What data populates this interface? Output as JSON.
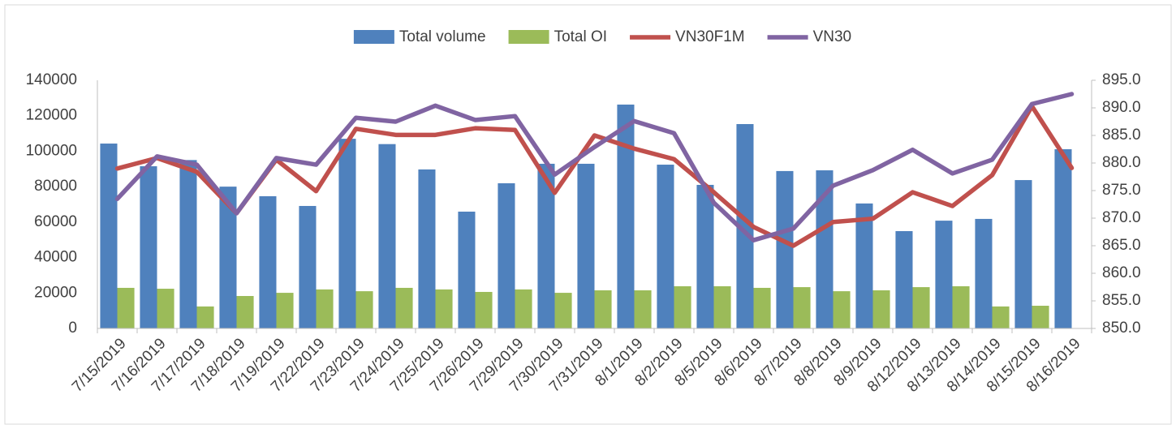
{
  "chart_data": {
    "type": "bar-line",
    "categories": [
      "7/15/2019",
      "7/16/2019",
      "7/17/2019",
      "7/18/2019",
      "7/19/2019",
      "7/22/2019",
      "7/23/2019",
      "7/24/2019",
      "7/25/2019",
      "7/26/2019",
      "7/29/2019",
      "7/30/2019",
      "7/31/2019",
      "8/1/2019",
      "8/2/2019",
      "8/5/2019",
      "8/6/2019",
      "8/7/2019",
      "8/8/2019",
      "8/9/2019",
      "8/12/2019",
      "8/13/2019",
      "8/14/2019",
      "8/15/2019",
      "8/16/2019"
    ],
    "series": [
      {
        "name": "Total volume",
        "type": "bar",
        "color": "#4f81bd",
        "values": [
          104300,
          91500,
          95000,
          80000,
          74600,
          69100,
          107000,
          104000,
          89700,
          65900,
          81900,
          92900,
          92900,
          126300,
          92400,
          81000,
          115300,
          88800,
          89200,
          70500,
          54900,
          60800,
          61800,
          83700,
          101100
        ]
      },
      {
        "name": "Total OI",
        "type": "bar",
        "color": "#9bbb59",
        "values": [
          22900,
          22400,
          12400,
          18300,
          20100,
          22000,
          21000,
          22900,
          22000,
          20600,
          22000,
          20100,
          21500,
          21500,
          23800,
          23800,
          22900,
          23300,
          21000,
          21500,
          23300,
          23800,
          12400,
          12800,
          null
        ]
      },
      {
        "name": "VN30F1M",
        "type": "line",
        "axis": "y2",
        "color": "#c0504d",
        "values": [
          879.0,
          880.9,
          878.4,
          870.9,
          880.6,
          874.9,
          886.2,
          885.1,
          885.1,
          886.3,
          886.0,
          874.6,
          885.0,
          882.6,
          880.7,
          874.7,
          868.4,
          865.0,
          869.3,
          869.9,
          874.7,
          872.2,
          877.8,
          890.3,
          879.1
        ]
      },
      {
        "name": "VN30",
        "type": "line",
        "axis": "y2",
        "color": "#8064a2",
        "values": [
          873.5,
          881.2,
          879.7,
          870.9,
          880.9,
          879.7,
          888.2,
          887.5,
          890.4,
          887.8,
          888.5,
          877.9,
          882.9,
          887.6,
          885.4,
          872.8,
          866.0,
          868.1,
          875.9,
          878.7,
          882.4,
          878.1,
          880.6,
          890.7,
          892.5
        ]
      }
    ],
    "ylim": [
      0,
      140000
    ],
    "yticks": [
      0,
      20000,
      40000,
      60000,
      80000,
      100000,
      120000,
      140000
    ],
    "y2lim": [
      850,
      895
    ],
    "y2ticks": [
      {
        "value": 850,
        "label": "850.0"
      },
      {
        "value": 855,
        "label": "855.0"
      },
      {
        "value": 860,
        "label": "860.0"
      },
      {
        "value": 865,
        "label": "865.0"
      },
      {
        "value": 870,
        "label": "870.0"
      },
      {
        "value": 875,
        "label": "875.0"
      },
      {
        "value": 880,
        "label": "880.0"
      },
      {
        "value": 885,
        "label": "885.0"
      },
      {
        "value": 890,
        "label": "890.0"
      },
      {
        "value": 895,
        "label": "895.0"
      }
    ],
    "legend": "top",
    "grid": false
  }
}
